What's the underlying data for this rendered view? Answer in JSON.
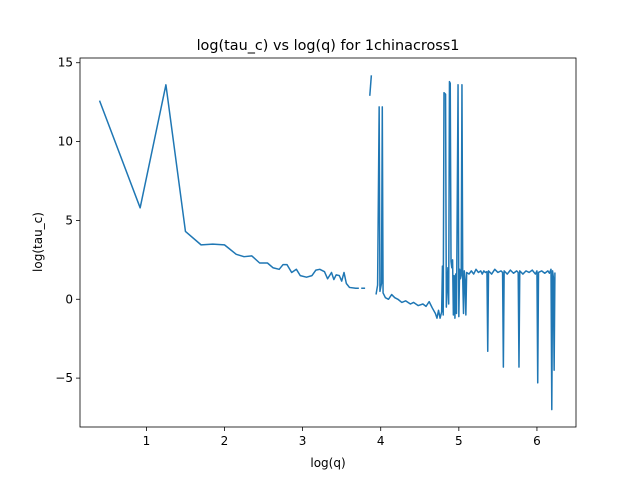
{
  "chart_data": {
    "type": "line",
    "title": "log(tau_c) vs log(q) for 1chinacross1",
    "xlabel": "log(q)",
    "ylabel": "log(tau_c)",
    "xlim": [
      0.15,
      6.5
    ],
    "ylim": [
      -8.1,
      15.3
    ],
    "xticks": [
      1,
      2,
      3,
      4,
      5,
      6
    ],
    "xtick_labels": [
      "1",
      "2",
      "3",
      "4",
      "5",
      "6"
    ],
    "yticks": [
      -5,
      0,
      5,
      10,
      15
    ],
    "ytick_labels": [
      "−5",
      "0",
      "5",
      "10",
      "15"
    ],
    "grid": false,
    "legend": "none",
    "color": "#1f77b4",
    "series": [
      {
        "segments": [
          [
            [
              0.4,
              12.6
            ],
            [
              0.92,
              5.8
            ],
            [
              1.25,
              13.6
            ],
            [
              1.5,
              4.3
            ],
            [
              1.7,
              3.45
            ],
            [
              1.85,
              3.5
            ],
            [
              2.0,
              3.45
            ],
            [
              2.05,
              3.25
            ],
            [
              2.15,
              2.85
            ],
            [
              2.25,
              2.7
            ],
            [
              2.35,
              2.75
            ],
            [
              2.45,
              2.3
            ],
            [
              2.55,
              2.3
            ],
            [
              2.62,
              2.0
            ],
            [
              2.7,
              1.9
            ],
            [
              2.75,
              2.2
            ],
            [
              2.8,
              2.2
            ],
            [
              2.86,
              1.7
            ],
            [
              2.92,
              1.9
            ],
            [
              2.97,
              1.5
            ],
            [
              3.05,
              1.4
            ],
            [
              3.12,
              1.5
            ],
            [
              3.17,
              1.85
            ],
            [
              3.22,
              1.9
            ],
            [
              3.28,
              1.75
            ],
            [
              3.32,
              1.3
            ],
            [
              3.37,
              1.7
            ],
            [
              3.4,
              1.25
            ],
            [
              3.43,
              1.55
            ],
            [
              3.47,
              1.5
            ],
            [
              3.5,
              1.15
            ],
            [
              3.53,
              1.7
            ],
            [
              3.56,
              1.0
            ],
            [
              3.6,
              0.75
            ],
            [
              3.68,
              0.7
            ],
            [
              3.72,
              0.7
            ]
          ],
          [
            [
              3.75,
              0.7
            ],
            [
              3.8,
              0.7
            ]
          ],
          [
            [
              3.86,
              12.9
            ],
            [
              3.88,
              14.2
            ]
          ],
          [
            [
              3.94,
              0.3
            ],
            [
              3.96,
              0.9
            ],
            [
              3.98,
              12.2
            ],
            [
              3.99,
              0.5
            ],
            [
              4.01,
              1.0
            ],
            [
              4.02,
              12.2
            ],
            [
              4.03,
              0.4
            ],
            [
              4.06,
              0.1
            ],
            [
              4.1,
              0.0
            ],
            [
              4.14,
              0.3
            ],
            [
              4.18,
              0.1
            ],
            [
              4.22,
              0.0
            ],
            [
              4.27,
              -0.2
            ],
            [
              4.32,
              -0.1
            ],
            [
              4.38,
              -0.3
            ],
            [
              4.42,
              -0.2
            ],
            [
              4.48,
              -0.4
            ],
            [
              4.54,
              -0.3
            ],
            [
              4.58,
              -0.45
            ],
            [
              4.62,
              -0.15
            ],
            [
              4.66,
              -0.55
            ],
            [
              4.7,
              -0.9
            ],
            [
              4.72,
              -1.2
            ],
            [
              4.74,
              -0.7
            ],
            [
              4.76,
              -1.2
            ],
            [
              4.78,
              -0.8
            ],
            [
              4.79,
              2.1
            ],
            [
              4.8,
              -1.0
            ],
            [
              4.81,
              13.1
            ],
            [
              4.83,
              13.0
            ],
            [
              4.84,
              -0.5
            ],
            [
              4.86,
              2.0
            ],
            [
              4.87,
              -0.3
            ],
            [
              4.88,
              13.8
            ],
            [
              4.89,
              13.7
            ],
            [
              4.9,
              2.4
            ],
            [
              4.91,
              2.0
            ],
            [
              4.92,
              2.5
            ],
            [
              4.93,
              -1.0
            ],
            [
              4.94,
              1.5
            ],
            [
              4.95,
              -1.2
            ],
            [
              4.96,
              1.6
            ],
            [
              4.97,
              -0.9
            ],
            [
              4.99,
              13.6
            ],
            [
              5.0,
              -1.1
            ],
            [
              5.01,
              1.9
            ],
            [
              5.02,
              1.3
            ],
            [
              5.03,
              1.5
            ],
            [
              5.04,
              13.6
            ],
            [
              5.05,
              1.2
            ],
            [
              5.06,
              -0.9
            ],
            [
              5.07,
              1.8
            ],
            [
              5.08,
              1.2
            ],
            [
              5.09,
              -1.0
            ],
            [
              5.1,
              1.7
            ],
            [
              5.13,
              1.6
            ],
            [
              5.16,
              1.8
            ],
            [
              5.19,
              1.6
            ],
            [
              5.22,
              1.9
            ],
            [
              5.25,
              1.7
            ],
            [
              5.28,
              1.8
            ],
            [
              5.3,
              1.6
            ],
            [
              5.32,
              1.8
            ],
            [
              5.34,
              1.7
            ],
            [
              5.36,
              1.75
            ],
            [
              5.37,
              -3.3
            ],
            [
              5.38,
              1.8
            ],
            [
              5.42,
              1.6
            ],
            [
              5.46,
              1.9
            ],
            [
              5.5,
              1.7
            ],
            [
              5.54,
              1.8
            ],
            [
              5.56,
              1.7
            ],
            [
              5.57,
              -4.3
            ],
            [
              5.58,
              1.8
            ],
            [
              5.62,
              1.6
            ],
            [
              5.66,
              1.85
            ],
            [
              5.7,
              1.65
            ],
            [
              5.74,
              1.8
            ],
            [
              5.76,
              1.7
            ],
            [
              5.77,
              -4.3
            ],
            [
              5.78,
              1.8
            ],
            [
              5.82,
              1.6
            ],
            [
              5.86,
              1.8
            ],
            [
              5.9,
              1.7
            ],
            [
              5.94,
              1.85
            ],
            [
              5.98,
              1.6
            ],
            [
              6.0,
              1.8
            ],
            [
              6.01,
              -5.3
            ],
            [
              6.02,
              1.7
            ],
            [
              6.06,
              1.8
            ],
            [
              6.1,
              1.65
            ],
            [
              6.14,
              1.8
            ],
            [
              6.16,
              1.65
            ],
            [
              6.18,
              1.9
            ],
            [
              6.19,
              -7.0
            ],
            [
              6.2,
              1.8
            ],
            [
              6.21,
              1.4
            ],
            [
              6.22,
              -4.5
            ],
            [
              6.23,
              1.7
            ]
          ]
        ]
      }
    ]
  }
}
